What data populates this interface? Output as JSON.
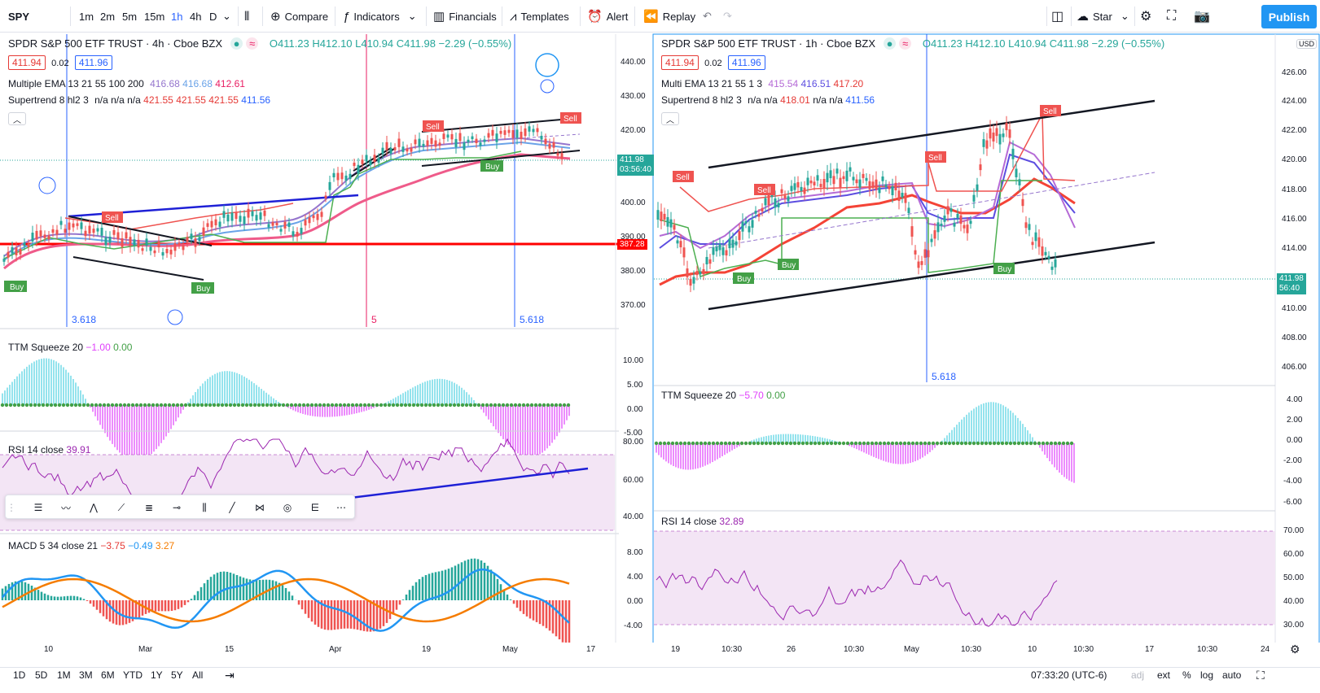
{
  "toolbar": {
    "symbol": "SPY",
    "intervals": [
      "1m",
      "2m",
      "5m",
      "15m",
      "1h",
      "4h",
      "D"
    ],
    "active_interval": "1h",
    "compare": "Compare",
    "indicators": "Indicators",
    "financials": "Financials",
    "templates": "Templates",
    "alert": "Alert",
    "replay": "Replay",
    "star": "Star",
    "publish": "Publish"
  },
  "left": {
    "title": "SPDR S&P 500 ETF TRUST · 4h · Cboe BZX",
    "ohlc": "O411.23 H412.10 L410.94 C411.98 −2.29 (−0.55%)",
    "bid": "411.94",
    "spread": "0.02",
    "ask": "411.96",
    "ema_label": "Multiple EMA 13 21 55 100 200",
    "ema_v1": "416.68",
    "ema_v2": "416.68",
    "ema_v3": "412.61",
    "st_label": "Supertrend 8 hl2 3",
    "st_vals": "n/a  n/a  n/a",
    "st_v1": "421.55",
    "st_v2": "421.55",
    "st_v3": "421.55",
    "st_v4": "411.56",
    "price_axis": [
      "440.00",
      "430.00",
      "420.00",
      "410.00",
      "400.00",
      "390.00",
      "380.00",
      "370.00"
    ],
    "last_price": "411.98",
    "countdown": "03:56:40",
    "level_price": "387.28",
    "fib_a": "3.618",
    "fib_b": "5",
    "fib_c": "5.618",
    "ttm_label": "TTM Squeeze 20",
    "ttm_v1": "−1.00",
    "ttm_v2": "0.00",
    "ttm_axis": [
      "10.00",
      "5.00",
      "0.00",
      "-5.00"
    ],
    "rsi_label": "RSI 14 close",
    "rsi_v": "39.91",
    "rsi_axis": [
      "80.00",
      "60.00",
      "40.00"
    ],
    "macd_label": "MACD 5 34 close 21",
    "macd_v1": "−3.75",
    "macd_v2": "−0.49",
    "macd_v3": "3.27",
    "macd_axis": [
      "8.00",
      "4.00",
      "0.00",
      "-4.00"
    ],
    "time_axis": [
      "10",
      "Mar",
      "15",
      "Apr",
      "19",
      "May",
      "17"
    ]
  },
  "right": {
    "title": "SPDR S&P 500 ETF TRUST · 1h · Cboe BZX",
    "ohlc": "O411.23 H412.10 L410.94 C411.98 −2.29 (−0.55%)",
    "bid": "411.94",
    "spread": "0.02",
    "ask": "411.96",
    "ema_label": "Multi EMA 13 21 55 1 3",
    "ema_v1": "415.54",
    "ema_v2": "416.51",
    "ema_v3": "417.20",
    "st_label": "Supertrend 8 hl2 3",
    "st_v1": "n/a  n/a",
    "st_v2": "418.01",
    "st_v3": "n/a  n/a",
    "st_v4": "411.56",
    "price_axis": [
      "426.00",
      "424.00",
      "422.00",
      "420.00",
      "418.00",
      "416.00",
      "414.00",
      "412.00",
      "410.00",
      "408.00",
      "406.00"
    ],
    "usd": "USD",
    "last_price": "411.98",
    "countdown": "56:40",
    "fib": "5.618",
    "ttm_label": "TTM Squeeze 20",
    "ttm_v1": "−5.70",
    "ttm_v2": "0.00",
    "ttm_axis": [
      "4.00",
      "2.00",
      "0.00",
      "-2.00",
      "-4.00",
      "-6.00"
    ],
    "rsi_label": "RSI 14 close",
    "rsi_v": "32.89",
    "rsi_axis": [
      "70.00",
      "60.00",
      "50.00",
      "40.00",
      "30.00"
    ],
    "time_axis": [
      "19",
      "10:30",
      "26",
      "10:30",
      "May",
      "10:30",
      "10",
      "10:30",
      "17",
      "10:30",
      "24"
    ]
  },
  "bottom": {
    "ranges": [
      "1D",
      "5D",
      "1M",
      "3M",
      "6M",
      "YTD",
      "1Y",
      "5Y",
      "All"
    ],
    "clock": "07:33:20 (UTC-6)",
    "adj": "adj",
    "ext": "ext",
    "pct": "%",
    "log": "log",
    "auto": "auto"
  },
  "colors": {
    "accent": "#2196f3",
    "up": "#26a69a",
    "down": "#ef5350",
    "rsi_band": "#f3e5f5",
    "rsi_line": "#9c27b0"
  }
}
